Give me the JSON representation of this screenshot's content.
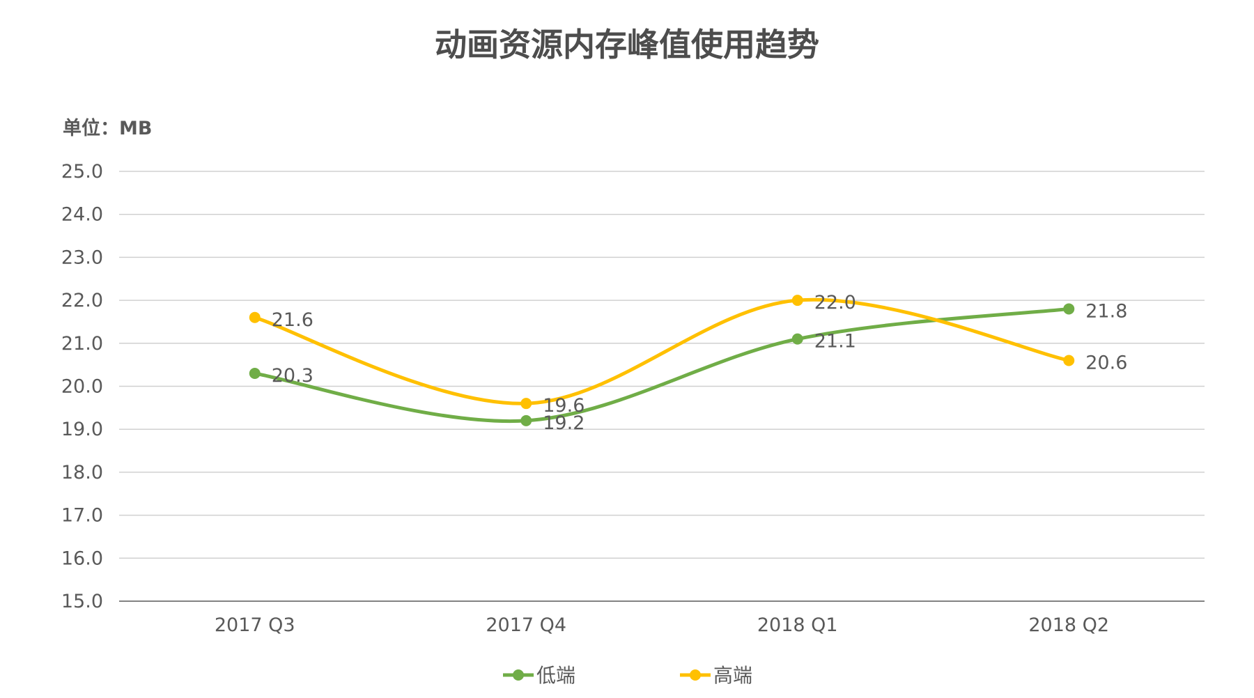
{
  "chart_data": {
    "type": "line",
    "title": "动画资源内存峰值使用趋势",
    "unit_label": "单位：MB",
    "categories": [
      "2017 Q3",
      "2017 Q4",
      "2018 Q1",
      "2018 Q2"
    ],
    "ylim": [
      15,
      25
    ],
    "yticks": [
      "15.0",
      "16.0",
      "17.0",
      "18.0",
      "19.0",
      "20.0",
      "21.0",
      "22.0",
      "23.0",
      "24.0",
      "25.0"
    ],
    "grid": true,
    "smooth": true,
    "legend_position": "bottom",
    "series": [
      {
        "name": "低端",
        "values": [
          20.3,
          19.2,
          21.1,
          21.8
        ],
        "labels": [
          "20.3",
          "19.2",
          "21.1",
          "21.8"
        ],
        "color": "#70ad47"
      },
      {
        "name": "高端",
        "values": [
          21.6,
          19.6,
          22.0,
          20.6
        ],
        "labels": [
          "21.6",
          "19.6",
          "22.0",
          "20.6"
        ],
        "color": "#ffc000"
      }
    ]
  }
}
